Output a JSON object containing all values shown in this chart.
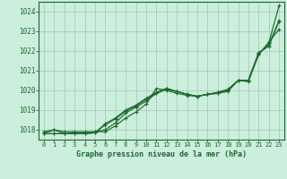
{
  "title": "Graphe pression niveau de la mer (hPa)",
  "background_color": "#cceedd",
  "grid_color": "#aaccbb",
  "line_color": "#1a6b2a",
  "xlim": [
    -0.5,
    23.5
  ],
  "ylim": [
    1017.5,
    1024.5
  ],
  "yticks": [
    1018,
    1019,
    1020,
    1021,
    1022,
    1023,
    1024
  ],
  "xticks": [
    0,
    1,
    2,
    3,
    4,
    5,
    6,
    7,
    8,
    9,
    10,
    11,
    12,
    13,
    14,
    15,
    16,
    17,
    18,
    19,
    20,
    21,
    22,
    23
  ],
  "series": [
    [
      1017.9,
      1018.0,
      1017.9,
      1017.9,
      1017.9,
      1017.9,
      1017.9,
      1018.2,
      1018.6,
      1018.9,
      1019.3,
      1020.1,
      1020.0,
      1019.85,
      1019.75,
      1019.7,
      1019.8,
      1019.85,
      1019.95,
      1020.5,
      1020.5,
      1021.85,
      1022.4,
      1024.3
    ],
    [
      1017.8,
      1018.0,
      1017.8,
      1017.85,
      1017.85,
      1017.9,
      1018.0,
      1018.35,
      1018.85,
      1019.15,
      1019.45,
      1019.85,
      1020.1,
      1019.95,
      1019.8,
      1019.7,
      1019.8,
      1019.9,
      1020.05,
      1020.5,
      1020.45,
      1021.8,
      1022.45,
      1023.1
    ],
    [
      1017.8,
      1017.8,
      1017.8,
      1017.8,
      1017.8,
      1017.85,
      1018.25,
      1018.55,
      1018.95,
      1019.2,
      1019.55,
      1019.85,
      1020.05,
      1019.95,
      1019.8,
      1019.7,
      1019.8,
      1019.85,
      1020.0,
      1020.5,
      1020.5,
      1021.9,
      1022.25,
      1023.5
    ],
    [
      1017.8,
      1017.8,
      1017.8,
      1017.8,
      1017.8,
      1017.85,
      1018.3,
      1018.6,
      1019.0,
      1019.25,
      1019.6,
      1019.9,
      1020.1,
      1019.95,
      1019.8,
      1019.7,
      1019.8,
      1019.9,
      1020.05,
      1020.5,
      1020.5,
      1021.9,
      1022.3,
      1023.55
    ]
  ]
}
